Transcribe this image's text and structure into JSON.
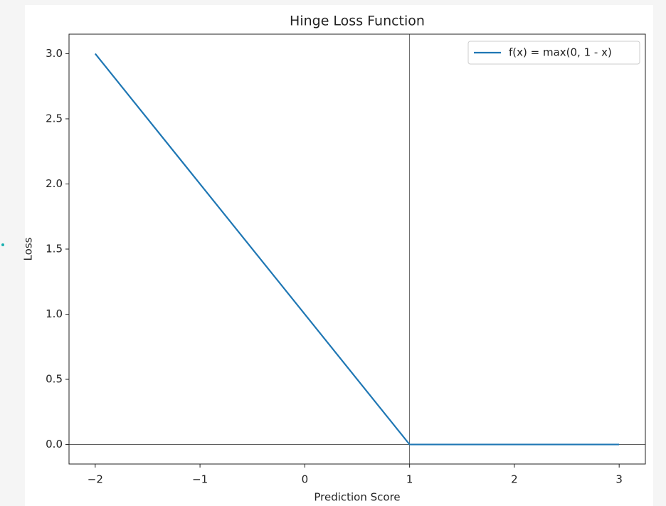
{
  "chart_data": {
    "type": "line",
    "title": "Hinge Loss Function",
    "xlabel": "Prediction Score",
    "ylabel": "Loss",
    "x": [
      -2,
      1,
      3
    ],
    "series": [
      {
        "name": "f(x) = max(0, 1 - x)",
        "color": "#1f77b4",
        "values": [
          3,
          0,
          0
        ]
      }
    ],
    "xlim": [
      -2.25,
      3.25
    ],
    "ylim": [
      -0.15,
      3.15
    ],
    "xticks": [
      {
        "value": -2,
        "label": "−2"
      },
      {
        "value": -1,
        "label": "−1"
      },
      0,
      1,
      2,
      3
    ],
    "yticks": [
      {
        "value": 0,
        "label": "0.0"
      },
      {
        "value": 0.5,
        "label": "0.5"
      },
      {
        "value": 1,
        "label": "1.0"
      },
      {
        "value": 1.5,
        "label": "1.5"
      },
      {
        "value": 2,
        "label": "2.0"
      },
      {
        "value": 2.5,
        "label": "2.5"
      },
      {
        "value": 3,
        "label": "3.0"
      }
    ],
    "hlines": [
      0
    ],
    "vlines": [
      1
    ],
    "legend": "upper right",
    "grid": false
  }
}
